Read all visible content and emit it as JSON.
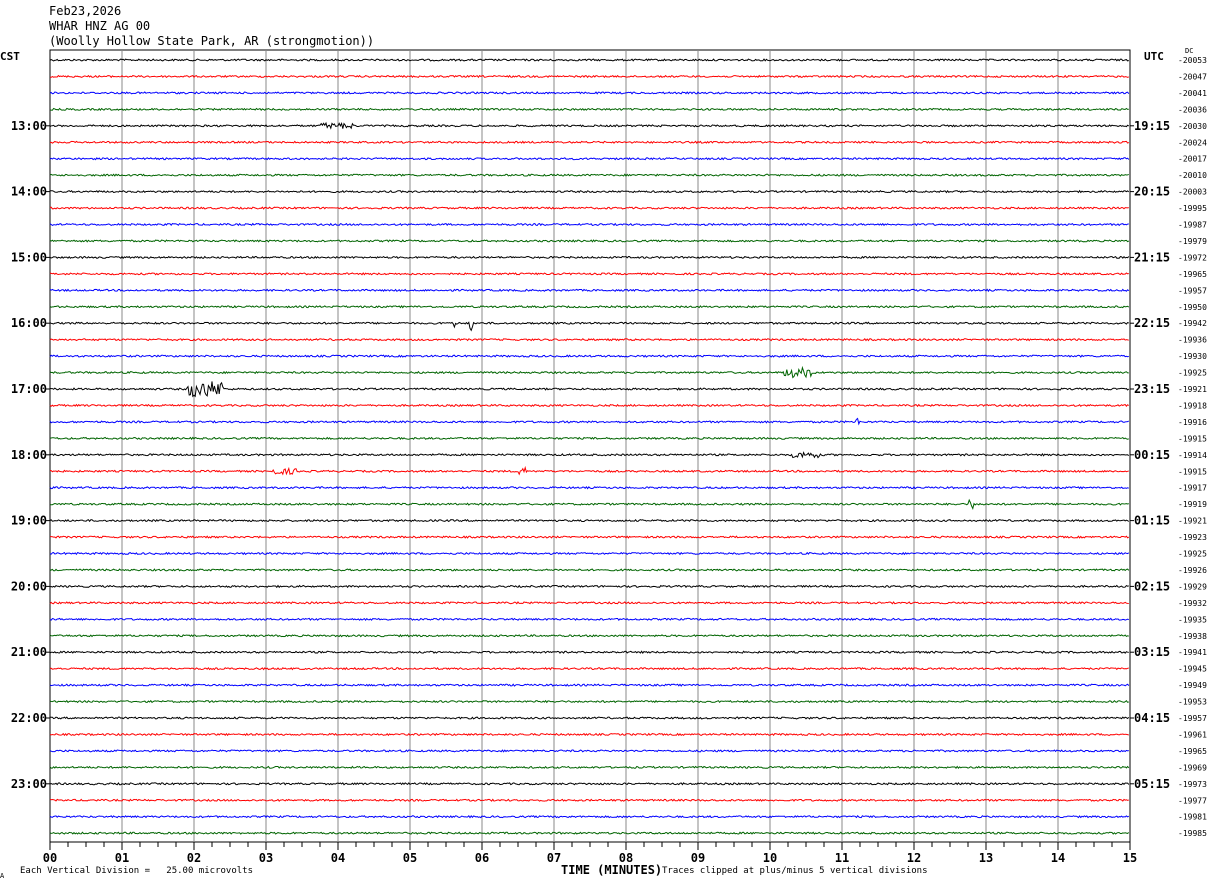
{
  "header": {
    "date": "Feb23,2026",
    "station": "WHAR HNZ AG 00",
    "site": "(Woolly Hollow State Park, AR (strongmotion))"
  },
  "left_zone_label": "CST",
  "right_zone_label": "UTC",
  "dc_label": "DC",
  "footer": {
    "scale_note": "Each Vertical Division =   25.00 microvolts",
    "clip_note": "Traces clipped at plus/minus 5 vertical divisions",
    "corner_mark": "A"
  },
  "chart_data": {
    "type": "line",
    "title": "",
    "xlabel": "TIME (MINUTES)",
    "ylabel": "",
    "xlim": [
      0,
      15
    ],
    "x_ticks": [
      "00",
      "01",
      "02",
      "03",
      "04",
      "05",
      "06",
      "07",
      "08",
      "09",
      "10",
      "11",
      "12",
      "13",
      "14",
      "15"
    ],
    "rows_per_hour": 4,
    "trace_colors": [
      "#000000",
      "#ff0000",
      "#0000ff",
      "#006400"
    ],
    "left_hour_labels": [
      "",
      "13:00",
      "14:00",
      "15:00",
      "16:00",
      "17:00",
      "18:00",
      "19:00",
      "20:00",
      "21:00",
      "22:00",
      "23:00"
    ],
    "right_hour_labels": [
      "",
      "19:15",
      "20:15",
      "21:15",
      "22:15",
      "23:15",
      "00:15",
      "01:15",
      "02:15",
      "03:15",
      "04:15",
      "05:15"
    ],
    "dc_offsets": [
      -20053,
      -20047,
      -20041,
      -20036,
      -20030,
      -20024,
      -20017,
      -20010,
      -20003,
      -19995,
      -19987,
      -19979,
      -19972,
      -19965,
      -19957,
      -19950,
      -19942,
      -19936,
      -19930,
      -19925,
      -19921,
      -19918,
      -19916,
      -19915,
      -19914,
      -19915,
      -19917,
      -19919,
      -19921,
      -19923,
      -19925,
      -19926,
      -19929,
      -19932,
      -19935,
      -19938,
      -19941,
      -19945,
      -19949,
      -19953,
      -19957,
      -19961,
      -19965,
      -19969,
      -19973,
      -19977,
      -19981,
      -19985
    ],
    "events": [
      {
        "row": 4,
        "minute": 3.75,
        "duration": 0.45,
        "amplitude": 3
      },
      {
        "row": 16,
        "minute": 5.6,
        "duration": 0.05,
        "amplitude": 8
      },
      {
        "row": 16,
        "minute": 5.82,
        "duration": 0.05,
        "amplitude": 8
      },
      {
        "row": 19,
        "minute": 10.2,
        "duration": 0.4,
        "amplitude": 5
      },
      {
        "row": 20,
        "minute": 1.9,
        "duration": 0.5,
        "amplitude": 8
      },
      {
        "row": 22,
        "minute": 11.2,
        "duration": 0.05,
        "amplitude": 4
      },
      {
        "row": 24,
        "minute": 10.3,
        "duration": 0.4,
        "amplitude": 3
      },
      {
        "row": 25,
        "minute": 3.05,
        "duration": 0.4,
        "amplitude": 3
      },
      {
        "row": 25,
        "minute": 6.5,
        "duration": 0.1,
        "amplitude": 5
      },
      {
        "row": 27,
        "minute": 12.75,
        "duration": 0.1,
        "amplitude": 5
      }
    ]
  }
}
